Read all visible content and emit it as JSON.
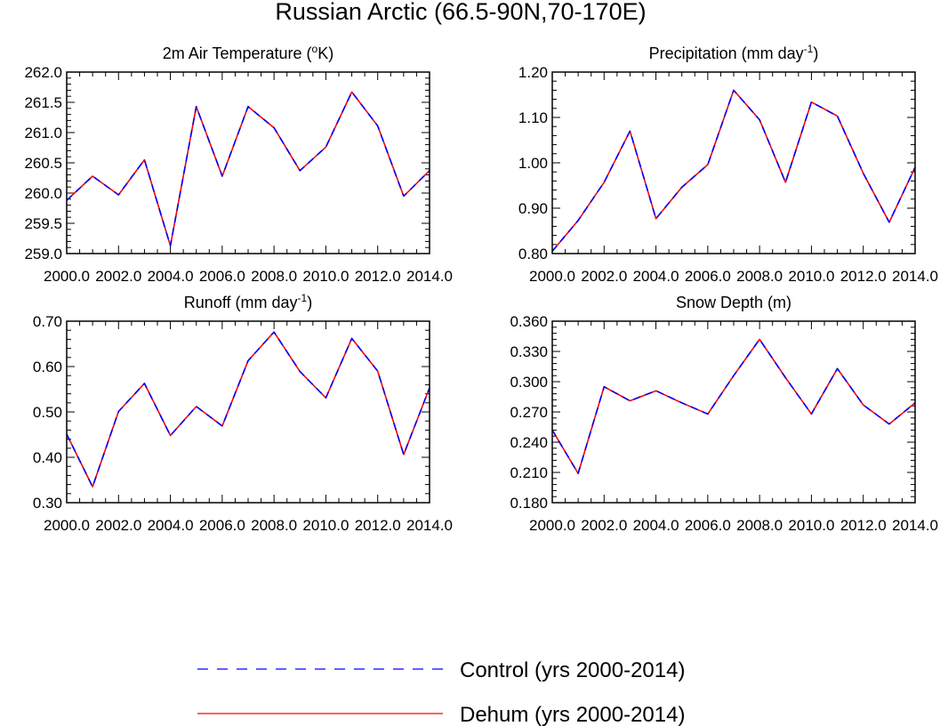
{
  "figure": {
    "title": "Russian Arctic (66.5-90N,70-170E)"
  },
  "legend": [
    {
      "name": "Control (yrs 2000-2014)",
      "color": "#0000ff",
      "style": "dashed"
    },
    {
      "name": "Dehum (yrs 2000-2014)",
      "color": "#ff0000",
      "style": "solid"
    }
  ],
  "chart_data": [
    {
      "type": "line",
      "title": "2m Air Temperature (oK)",
      "title_parts": {
        "pre": "2m Air Temperature (",
        "sup": "o",
        "post": "K)"
      },
      "x": [
        2000,
        2001,
        2002,
        2003,
        2004,
        2005,
        2006,
        2007,
        2008,
        2009,
        2010,
        2011,
        2012,
        2013,
        2014
      ],
      "xlim": [
        2000,
        2014
      ],
      "ylim": [
        259.0,
        262.0
      ],
      "xticks": [
        "2000.0",
        "2002.0",
        "2004.0",
        "2006.0",
        "2008.0",
        "2010.0",
        "2012.0",
        "2014.0"
      ],
      "yticks": [
        "259.0",
        "259.5",
        "260.0",
        "260.5",
        "261.0",
        "261.5",
        "262.0"
      ],
      "series": [
        {
          "name": "Control (yrs 2000-2014)",
          "values": [
            259.88,
            260.28,
            259.97,
            260.55,
            259.13,
            261.43,
            260.28,
            261.43,
            261.08,
            260.37,
            260.76,
            261.67,
            261.11,
            259.95,
            260.37
          ]
        },
        {
          "name": "Dehum (yrs 2000-2014)",
          "values": [
            259.88,
            260.28,
            259.97,
            260.55,
            259.13,
            261.43,
            260.28,
            261.43,
            261.08,
            260.37,
            260.76,
            261.67,
            261.11,
            259.95,
            260.37
          ]
        }
      ]
    },
    {
      "type": "line",
      "title": "Precipitation (mm day-1)",
      "title_parts": {
        "pre": "Precipitation (mm day",
        "sup": "-1",
        "post": ")"
      },
      "x": [
        2000,
        2001,
        2002,
        2003,
        2004,
        2005,
        2006,
        2007,
        2008,
        2009,
        2010,
        2011,
        2012,
        2013,
        2014
      ],
      "xlim": [
        2000,
        2014
      ],
      "ylim": [
        0.8,
        1.2
      ],
      "xticks": [
        "2000.0",
        "2002.0",
        "2004.0",
        "2006.0",
        "2008.0",
        "2010.0",
        "2012.0",
        "2014.0"
      ],
      "yticks": [
        "0.80",
        "0.90",
        "1.00",
        "1.10",
        "1.20"
      ],
      "series": [
        {
          "name": "Control (yrs 2000-2014)",
          "values": [
            0.805,
            0.873,
            0.957,
            1.07,
            0.877,
            0.946,
            0.996,
            1.16,
            1.095,
            0.957,
            1.134,
            1.103,
            0.977,
            0.869,
            0.99
          ]
        },
        {
          "name": "Dehum (yrs 2000-2014)",
          "values": [
            0.805,
            0.873,
            0.957,
            1.07,
            0.877,
            0.946,
            0.996,
            1.16,
            1.095,
            0.957,
            1.134,
            1.103,
            0.977,
            0.869,
            0.99
          ]
        }
      ]
    },
    {
      "type": "line",
      "title": "Runoff (mm day-1)",
      "title_parts": {
        "pre": "Runoff (mm day",
        "sup": "-1",
        "post": ")"
      },
      "x": [
        2000,
        2001,
        2002,
        2003,
        2004,
        2005,
        2006,
        2007,
        2008,
        2009,
        2010,
        2011,
        2012,
        2013,
        2014
      ],
      "xlim": [
        2000,
        2014
      ],
      "ylim": [
        0.3,
        0.7
      ],
      "xticks": [
        "2000.0",
        "2002.0",
        "2004.0",
        "2006.0",
        "2008.0",
        "2010.0",
        "2012.0",
        "2014.0"
      ],
      "yticks": [
        "0.30",
        "0.40",
        "0.50",
        "0.60",
        "0.70"
      ],
      "series": [
        {
          "name": "Control (yrs 2000-2014)",
          "values": [
            0.451,
            0.335,
            0.501,
            0.563,
            0.448,
            0.512,
            0.469,
            0.613,
            0.676,
            0.589,
            0.531,
            0.662,
            0.59,
            0.406,
            0.553
          ]
        },
        {
          "name": "Dehum (yrs 2000-2014)",
          "values": [
            0.451,
            0.335,
            0.501,
            0.563,
            0.448,
            0.512,
            0.469,
            0.613,
            0.676,
            0.589,
            0.531,
            0.662,
            0.59,
            0.406,
            0.553
          ]
        }
      ]
    },
    {
      "type": "line",
      "title": "Snow Depth (m)",
      "title_parts": {
        "pre": "Snow Depth (m)",
        "sup": "",
        "post": ""
      },
      "x": [
        2000,
        2001,
        2002,
        2003,
        2004,
        2005,
        2006,
        2007,
        2008,
        2009,
        2010,
        2011,
        2012,
        2013,
        2014
      ],
      "xlim": [
        2000,
        2014
      ],
      "ylim": [
        0.18,
        0.36
      ],
      "xticks": [
        "2000.0",
        "2002.0",
        "2004.0",
        "2006.0",
        "2008.0",
        "2010.0",
        "2012.0",
        "2014.0"
      ],
      "yticks": [
        "0.180",
        "0.210",
        "0.240",
        "0.270",
        "0.300",
        "0.330",
        "0.360"
      ],
      "series": [
        {
          "name": "Control (yrs 2000-2014)",
          "values": [
            0.252,
            0.209,
            0.295,
            0.281,
            0.291,
            0.279,
            0.268,
            0.306,
            0.342,
            0.304,
            0.268,
            0.313,
            0.277,
            0.258,
            0.279
          ]
        },
        {
          "name": "Dehum (yrs 2000-2014)",
          "values": [
            0.252,
            0.209,
            0.295,
            0.281,
            0.291,
            0.279,
            0.268,
            0.306,
            0.342,
            0.304,
            0.268,
            0.313,
            0.277,
            0.258,
            0.279
          ]
        }
      ]
    }
  ]
}
